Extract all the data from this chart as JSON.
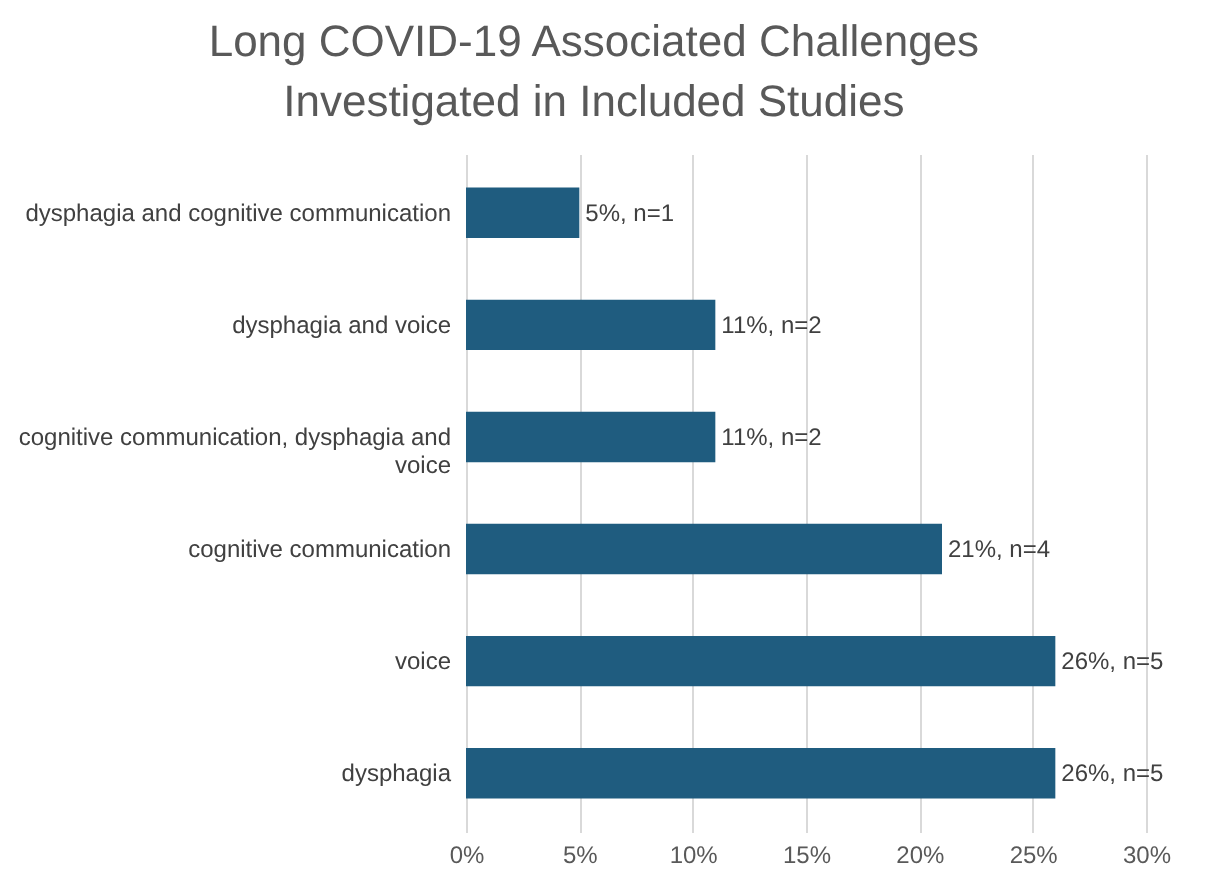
{
  "chart_data": {
    "type": "bar",
    "orientation": "horizontal",
    "title": "Long COVID-19 Associated Challenges Investigated in Included Studies",
    "categories": [
      "dysphagia and cognitive communication",
      "dysphagia  and voice",
      "cognitive communication, dysphagia and voice",
      "cognitive communication ",
      "voice",
      "dysphagia"
    ],
    "values": [
      5,
      11,
      11,
      21,
      26,
      26
    ],
    "value_labels": [
      "5%, n=1",
      "11%, n=2",
      "11%, n=2",
      "21%, n=4",
      "26%, n=5",
      "26%, n=5"
    ],
    "color": "#1f5c7f",
    "xlim": [
      0,
      30
    ],
    "xticks": [
      {
        "value": 0,
        "label": "0%"
      },
      {
        "value": 5,
        "label": "5%"
      },
      {
        "value": 10,
        "label": "10%"
      },
      {
        "value": 15,
        "label": "15%"
      },
      {
        "value": 20,
        "label": "20%"
      },
      {
        "value": 25,
        "label": "25%"
      },
      {
        "value": 30,
        "label": "30%"
      }
    ],
    "grid": "x"
  }
}
